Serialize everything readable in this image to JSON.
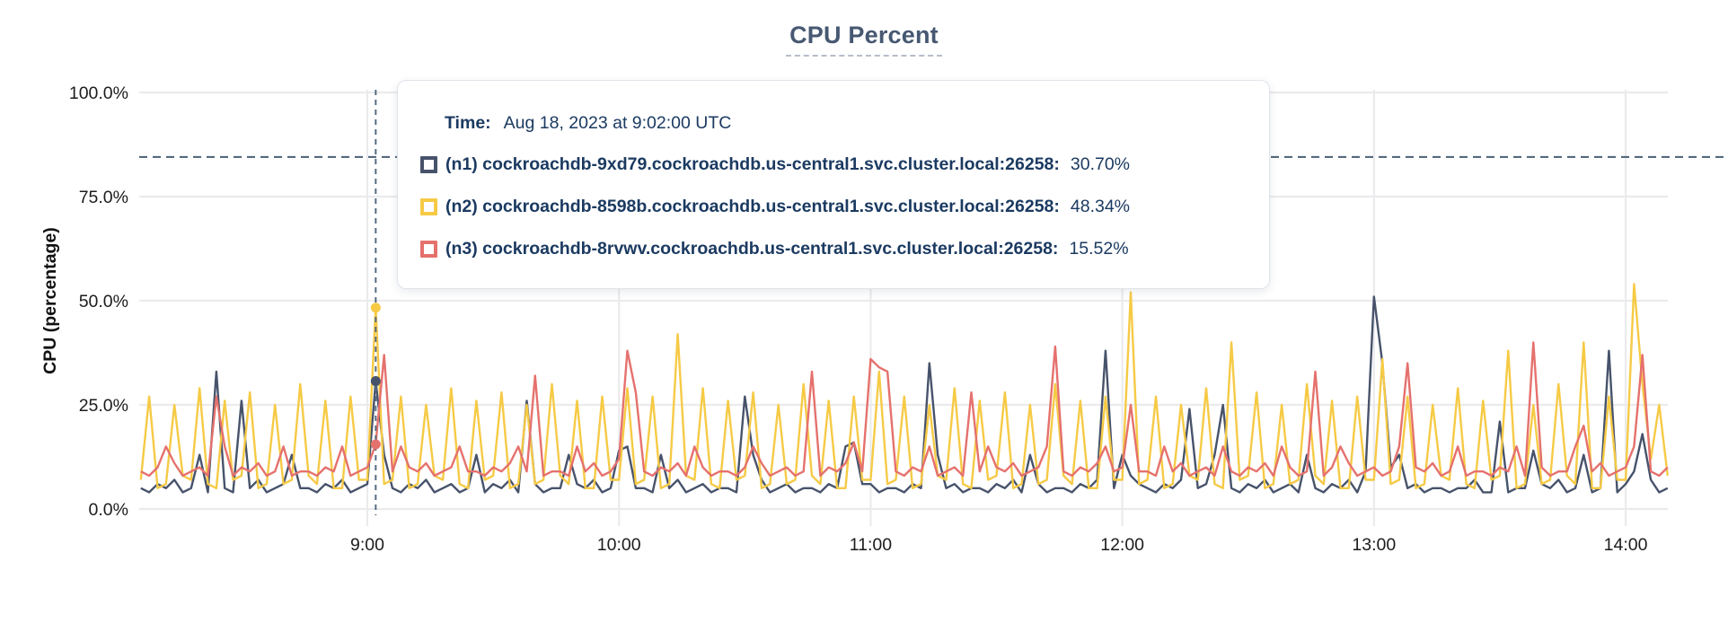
{
  "title": "CPU Percent",
  "axes": {
    "y_label": "CPU (percentage)",
    "y_ticks": [
      "0.0%",
      "25.0%",
      "50.0%",
      "75.0%",
      "100.0%"
    ],
    "x_ticks": [
      "9:00",
      "10:00",
      "11:00",
      "12:00",
      "13:00",
      "14:00"
    ]
  },
  "tooltip": {
    "time_label": "Time:",
    "time_value": "Aug 18, 2023 at 9:02:00 UTC",
    "rows": [
      {
        "node": "n1",
        "label": "(n1) cockroachdb-9xd79.cockroachdb.us-central1.svc.cluster.local:26258:",
        "value": "30.70%",
        "color": "#47536b"
      },
      {
        "node": "n2",
        "label": "(n2) cockroachdb-8598b.cockroachdb.us-central1.svc.cluster.local:26258:",
        "value": "48.34%",
        "color": "#f6ca45"
      },
      {
        "node": "n3",
        "label": "(n3) cockroachdb-8rvwv.cockroachdb.us-central1.svc.cluster.local:26258:",
        "value": "15.52%",
        "color": "#e5716d"
      }
    ]
  },
  "colors": {
    "title": "#475872",
    "grid": "#ebebed",
    "tick_text": "#1c1c1c",
    "crosshair": "#56githu6b82",
    "hover_line": "#566b82",
    "threshold_line": "#4a6076",
    "tooltip_text": "#1b3a61"
  },
  "chart_data": {
    "type": "line",
    "title": "CPU Percent",
    "xlabel": "",
    "ylabel": "CPU (percentage)",
    "ylim": [
      0,
      100
    ],
    "y_tick_percents": [
      0,
      25,
      50,
      75,
      100
    ],
    "x_tick_labels": [
      "9:00",
      "10:00",
      "11:00",
      "12:00",
      "13:00",
      "14:00"
    ],
    "x_tick_minutes": [
      540,
      600,
      660,
      720,
      780,
      840
    ],
    "x_start_minutes": 486,
    "x_step_minutes": 2,
    "grid": true,
    "threshold_percent": 84.5,
    "hover": {
      "index": 28,
      "time_minutes": 542,
      "time_text": "Aug 18, 2023 at 9:02:00 UTC",
      "values": {
        "n1": 30.7,
        "n2": 48.34,
        "n3": 15.52
      }
    },
    "series": [
      {
        "name": "(n1) cockroachdb-9xd79.cockroachdb.us-central1.svc.cluster.local:26258",
        "short": "n1",
        "color": "#47536b",
        "values": [
          5,
          4,
          6,
          5,
          7,
          4,
          5,
          13,
          4,
          33,
          5,
          4,
          26,
          5,
          7,
          4,
          5,
          6,
          13,
          5,
          5,
          4,
          6,
          5,
          7,
          4,
          5,
          6,
          30.7,
          13,
          5,
          4,
          6,
          5,
          7,
          4,
          5,
          6,
          4,
          5,
          13,
          4,
          6,
          5,
          7,
          4,
          26,
          6,
          4,
          5,
          5,
          13,
          6,
          5,
          7,
          4,
          5,
          14,
          15,
          5,
          5,
          4,
          13,
          5,
          7,
          4,
          5,
          6,
          4,
          5,
          5,
          4,
          27,
          13,
          7,
          4,
          5,
          6,
          4,
          5,
          5,
          4,
          6,
          5,
          15,
          16,
          6,
          6,
          4,
          5,
          5,
          4,
          6,
          5,
          35,
          13,
          5,
          6,
          4,
          5,
          5,
          4,
          6,
          5,
          7,
          4,
          13,
          6,
          4,
          5,
          5,
          4,
          6,
          5,
          7,
          38,
          5,
          13,
          8,
          6,
          5,
          4,
          6,
          5,
          7,
          24,
          5,
          6,
          13,
          25,
          5,
          4,
          6,
          5,
          7,
          4,
          5,
          6,
          4,
          13,
          5,
          4,
          6,
          5,
          7,
          4,
          9,
          51,
          35,
          10,
          13,
          5,
          6,
          4,
          5,
          5,
          4,
          5,
          5,
          7,
          4,
          4,
          21,
          4,
          5,
          5,
          14,
          6,
          5,
          7,
          4,
          5,
          13,
          4,
          5,
          38,
          4,
          6,
          9,
          18,
          7,
          4,
          5
        ]
      },
      {
        "name": "(n2) cockroachdb-8598b.cockroachdb.us-central1.svc.cluster.local:26258",
        "short": "n2",
        "color": "#f6ca45",
        "values": [
          7,
          27,
          5,
          6,
          25,
          8,
          7,
          29,
          6,
          5,
          26,
          7,
          8,
          28,
          5,
          6,
          25,
          6,
          7,
          30,
          8,
          6,
          26,
          5,
          5,
          27,
          7,
          7,
          48.34,
          6,
          7,
          27,
          5,
          6,
          25,
          8,
          7,
          29,
          6,
          5,
          26,
          7,
          8,
          28,
          5,
          6,
          25,
          6,
          7,
          30,
          8,
          6,
          26,
          5,
          5,
          27,
          7,
          7,
          29,
          6,
          7,
          27,
          5,
          6,
          42,
          8,
          7,
          29,
          6,
          5,
          26,
          7,
          8,
          28,
          5,
          6,
          25,
          6,
          7,
          30,
          8,
          6,
          26,
          5,
          5,
          27,
          7,
          7,
          33,
          6,
          7,
          27,
          5,
          6,
          25,
          8,
          7,
          29,
          6,
          5,
          26,
          7,
          8,
          28,
          5,
          6,
          25,
          6,
          7,
          30,
          8,
          6,
          26,
          5,
          5,
          27,
          7,
          7,
          52,
          6,
          7,
          27,
          5,
          6,
          25,
          8,
          7,
          29,
          6,
          5,
          40,
          7,
          8,
          28,
          5,
          6,
          25,
          6,
          7,
          30,
          8,
          6,
          26,
          5,
          5,
          27,
          7,
          7,
          36,
          6,
          7,
          27,
          5,
          6,
          25,
          8,
          7,
          29,
          6,
          5,
          26,
          7,
          8,
          38,
          5,
          6,
          25,
          6,
          7,
          30,
          8,
          6,
          40,
          5,
          5,
          27,
          7,
          7,
          54,
          30,
          12,
          25,
          8
        ]
      },
      {
        "name": "(n3) cockroachdb-8rvwv.cockroachdb.us-central1.svc.cluster.local:26258",
        "short": "n3",
        "color": "#e5716d",
        "values": [
          9,
          8,
          10,
          15,
          11,
          8,
          9,
          10,
          8,
          27,
          15,
          8,
          10,
          9,
          11,
          8,
          9,
          15,
          8,
          9,
          9,
          8,
          10,
          9,
          15,
          8,
          9,
          10,
          15.52,
          37,
          9,
          15,
          10,
          9,
          11,
          8,
          9,
          10,
          15,
          9,
          9,
          8,
          10,
          9,
          11,
          15,
          9,
          32,
          8,
          9,
          9,
          8,
          15,
          9,
          11,
          8,
          9,
          12,
          38,
          28,
          9,
          8,
          10,
          9,
          11,
          8,
          15,
          10,
          8,
          9,
          9,
          8,
          10,
          15,
          11,
          8,
          9,
          10,
          8,
          9,
          33,
          8,
          10,
          9,
          11,
          16,
          9,
          36,
          34,
          33,
          9,
          8,
          10,
          9,
          15,
          8,
          9,
          10,
          8,
          28,
          9,
          15,
          10,
          9,
          11,
          8,
          9,
          10,
          15,
          39,
          9,
          8,
          10,
          9,
          11,
          15,
          9,
          10,
          25,
          9,
          9,
          8,
          15,
          9,
          11,
          8,
          9,
          10,
          8,
          15,
          9,
          8,
          10,
          9,
          11,
          8,
          15,
          10,
          8,
          9,
          33,
          8,
          10,
          15,
          11,
          8,
          9,
          10,
          8,
          9,
          15,
          35,
          10,
          9,
          11,
          8,
          9,
          15,
          8,
          9,
          9,
          8,
          10,
          9,
          15,
          8,
          40,
          10,
          8,
          9,
          9,
          15,
          20,
          9,
          11,
          8,
          9,
          10,
          15,
          37,
          9,
          8,
          10
        ]
      }
    ]
  }
}
